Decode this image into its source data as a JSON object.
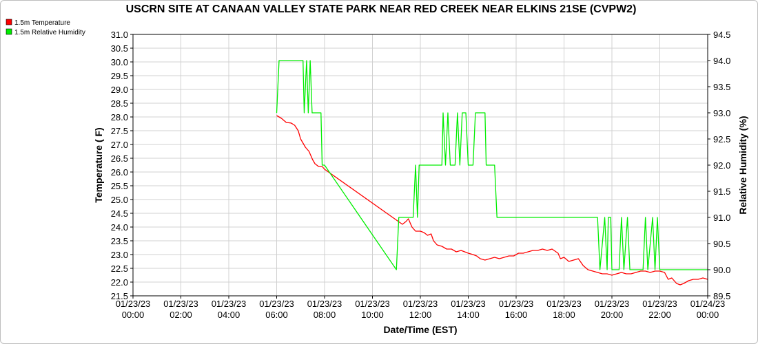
{
  "chart_data": {
    "type": "line",
    "title": "USCRN SITE AT CANAAN VALLEY STATE PARK NEAR RED CREEK NEAR ELKINS 21SE (CVPW2)",
    "xlabel": "Date/Time (EST)",
    "ylabel_left": "Temperature ( F)",
    "ylabel_right": "Relative Humidity (%)",
    "xlim_hours": [
      0,
      24
    ],
    "ylim_left": [
      21.5,
      31.0
    ],
    "ylim_right": [
      89.5,
      94.5
    ],
    "grid": true,
    "legend_position": "top-left",
    "x_tick_labels": [
      [
        "01/23/23",
        "00:00"
      ],
      [
        "01/23/23",
        "02:00"
      ],
      [
        "01/23/23",
        "04:00"
      ],
      [
        "01/23/23",
        "06:00"
      ],
      [
        "01/23/23",
        "08:00"
      ],
      [
        "01/23/23",
        "10:00"
      ],
      [
        "01/23/23",
        "12:00"
      ],
      [
        "01/23/23",
        "14:00"
      ],
      [
        "01/23/23",
        "16:00"
      ],
      [
        "01/23/23",
        "18:00"
      ],
      [
        "01/23/23",
        "20:00"
      ],
      [
        "01/23/23",
        "22:00"
      ],
      [
        "01/24/23",
        "00:00"
      ]
    ],
    "y_left_ticks": [
      "21.5",
      "22.0",
      "22.5",
      "23.0",
      "23.5",
      "24.0",
      "24.5",
      "25.0",
      "25.5",
      "26.0",
      "26.5",
      "27.0",
      "27.5",
      "28.0",
      "28.5",
      "29.0",
      "29.5",
      "30.0",
      "30.5",
      "31.0"
    ],
    "y_right_ticks": [
      "89.5",
      "90.0",
      "90.5",
      "91.0",
      "91.5",
      "92.0",
      "92.5",
      "93.0",
      "93.5",
      "94.0",
      "94.5"
    ],
    "series": [
      {
        "name": "1.5m Temperature",
        "color": "#ff0000",
        "axis": "left",
        "points": [
          [
            6.0,
            28.05
          ],
          [
            6.2,
            27.95
          ],
          [
            6.4,
            27.8
          ],
          [
            6.6,
            27.78
          ],
          [
            6.75,
            27.7
          ],
          [
            6.9,
            27.5
          ],
          [
            7.0,
            27.2
          ],
          [
            7.2,
            26.9
          ],
          [
            7.35,
            26.75
          ],
          [
            7.5,
            26.45
          ],
          [
            7.6,
            26.3
          ],
          [
            7.75,
            26.2
          ],
          [
            7.9,
            26.2
          ],
          [
            8.0,
            26.1
          ],
          [
            11.25,
            24.1
          ],
          [
            11.4,
            24.2
          ],
          [
            11.5,
            24.3
          ],
          [
            11.65,
            24.0
          ],
          [
            11.8,
            23.85
          ],
          [
            12.0,
            23.85
          ],
          [
            12.15,
            23.8
          ],
          [
            12.3,
            23.7
          ],
          [
            12.45,
            23.75
          ],
          [
            12.55,
            23.5
          ],
          [
            12.7,
            23.35
          ],
          [
            12.9,
            23.3
          ],
          [
            13.1,
            23.2
          ],
          [
            13.3,
            23.2
          ],
          [
            13.5,
            23.1
          ],
          [
            13.7,
            23.15
          ],
          [
            13.85,
            23.1
          ],
          [
            14.0,
            23.05
          ],
          [
            14.2,
            23.0
          ],
          [
            14.35,
            22.95
          ],
          [
            14.5,
            22.85
          ],
          [
            14.7,
            22.8
          ],
          [
            14.9,
            22.85
          ],
          [
            15.1,
            22.9
          ],
          [
            15.3,
            22.85
          ],
          [
            15.5,
            22.9
          ],
          [
            15.7,
            22.95
          ],
          [
            15.9,
            22.95
          ],
          [
            16.1,
            23.05
          ],
          [
            16.3,
            23.05
          ],
          [
            16.5,
            23.1
          ],
          [
            16.7,
            23.15
          ],
          [
            16.9,
            23.15
          ],
          [
            17.1,
            23.2
          ],
          [
            17.3,
            23.15
          ],
          [
            17.5,
            23.2
          ],
          [
            17.75,
            23.05
          ],
          [
            17.85,
            22.85
          ],
          [
            18.0,
            22.9
          ],
          [
            18.2,
            22.75
          ],
          [
            18.4,
            22.8
          ],
          [
            18.6,
            22.85
          ],
          [
            18.8,
            22.6
          ],
          [
            19.0,
            22.45
          ],
          [
            19.2,
            22.4
          ],
          [
            19.4,
            22.35
          ],
          [
            19.6,
            22.3
          ],
          [
            19.8,
            22.3
          ],
          [
            20.0,
            22.25
          ],
          [
            20.2,
            22.3
          ],
          [
            20.4,
            22.35
          ],
          [
            20.6,
            22.3
          ],
          [
            20.8,
            22.3
          ],
          [
            21.0,
            22.35
          ],
          [
            21.2,
            22.4
          ],
          [
            21.4,
            22.4
          ],
          [
            21.6,
            22.35
          ],
          [
            21.8,
            22.4
          ],
          [
            22.0,
            22.4
          ],
          [
            22.2,
            22.35
          ],
          [
            22.35,
            22.1
          ],
          [
            22.5,
            22.15
          ],
          [
            22.7,
            21.95
          ],
          [
            22.85,
            21.9
          ],
          [
            23.0,
            21.95
          ],
          [
            23.2,
            22.05
          ],
          [
            23.4,
            22.1
          ],
          [
            23.6,
            22.1
          ],
          [
            23.8,
            22.15
          ],
          [
            24.0,
            22.1
          ]
        ]
      },
      {
        "name": "1.5m Relative Humidity",
        "color": "#00ee00",
        "axis": "right",
        "points": [
          [
            6.0,
            93.0
          ],
          [
            6.1,
            94.0
          ],
          [
            7.1,
            94.0
          ],
          [
            7.15,
            93.0
          ],
          [
            7.25,
            94.0
          ],
          [
            7.32,
            93.0
          ],
          [
            7.4,
            94.0
          ],
          [
            7.48,
            93.0
          ],
          [
            7.85,
            93.0
          ],
          [
            7.9,
            92.0
          ],
          [
            8.0,
            92.0
          ],
          [
            11.0,
            90.0
          ],
          [
            11.1,
            91.0
          ],
          [
            11.7,
            91.0
          ],
          [
            11.8,
            92.0
          ],
          [
            11.88,
            91.0
          ],
          [
            11.95,
            92.0
          ],
          [
            12.9,
            92.0
          ],
          [
            12.95,
            93.0
          ],
          [
            13.05,
            92.0
          ],
          [
            13.15,
            93.0
          ],
          [
            13.25,
            92.0
          ],
          [
            13.45,
            92.0
          ],
          [
            13.55,
            93.0
          ],
          [
            13.65,
            92.0
          ],
          [
            13.75,
            93.0
          ],
          [
            13.9,
            93.0
          ],
          [
            14.0,
            92.0
          ],
          [
            14.2,
            92.0
          ],
          [
            14.3,
            93.0
          ],
          [
            14.7,
            93.0
          ],
          [
            14.75,
            92.0
          ],
          [
            15.1,
            92.0
          ],
          [
            15.2,
            91.0
          ],
          [
            19.4,
            91.0
          ],
          [
            19.5,
            90.0
          ],
          [
            19.7,
            91.0
          ],
          [
            19.8,
            90.0
          ],
          [
            19.85,
            91.0
          ],
          [
            19.95,
            91.0
          ],
          [
            20.0,
            90.0
          ],
          [
            20.3,
            90.0
          ],
          [
            20.4,
            91.0
          ],
          [
            20.5,
            90.0
          ],
          [
            20.65,
            91.0
          ],
          [
            20.75,
            90.0
          ],
          [
            21.3,
            90.0
          ],
          [
            21.4,
            91.0
          ],
          [
            21.5,
            90.0
          ],
          [
            21.7,
            91.0
          ],
          [
            21.8,
            90.0
          ],
          [
            21.9,
            91.0
          ],
          [
            22.0,
            90.0
          ],
          [
            24.0,
            90.0
          ]
        ]
      }
    ]
  }
}
